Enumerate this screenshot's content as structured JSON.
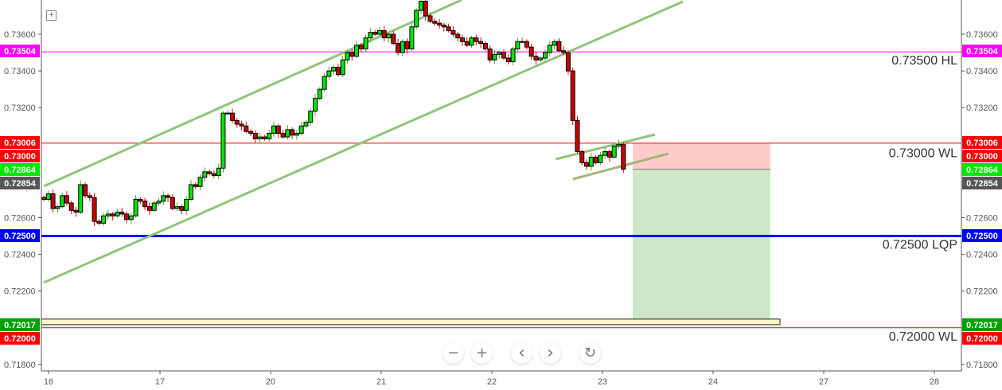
{
  "chart_data": {
    "type": "candlestick",
    "ylim": [
      0.7175,
      0.7378
    ],
    "y_ticks": [
      "0.73600",
      "0.73400",
      "0.73200",
      "0.72600",
      "0.72400",
      "0.72200",
      "0.71800"
    ],
    "x_ticks": [
      "16",
      "17",
      "20",
      "21",
      "22",
      "23",
      "24",
      "27",
      "28"
    ],
    "grid": false,
    "first_open": 0.7271,
    "closes": [
      0.727,
      0.7273,
      0.7265,
      0.7266,
      0.7272,
      0.7268,
      0.7264,
      0.7263,
      0.7278,
      0.7272,
      0.7271,
      0.7258,
      0.7257,
      0.7261,
      0.7262,
      0.7261,
      0.7263,
      0.7262,
      0.7259,
      0.7261,
      0.727,
      0.7269,
      0.7266,
      0.7264,
      0.7268,
      0.7269,
      0.7272,
      0.7271,
      0.7265,
      0.7266,
      0.7264,
      0.727,
      0.7278,
      0.7277,
      0.7282,
      0.7285,
      0.7284,
      0.7283,
      0.7287,
      0.7317,
      0.7317,
      0.7313,
      0.7311,
      0.731,
      0.7307,
      0.7306,
      0.7303,
      0.7304,
      0.7303,
      0.7306,
      0.731,
      0.7306,
      0.7304,
      0.7308,
      0.7305,
      0.7306,
      0.731,
      0.7312,
      0.7318,
      0.7325,
      0.733,
      0.7337,
      0.734,
      0.7342,
      0.7338,
      0.7346,
      0.735,
      0.7348,
      0.7354,
      0.7352,
      0.7358,
      0.7361,
      0.736,
      0.7362,
      0.7358,
      0.736,
      0.7355,
      0.735,
      0.7356,
      0.7352,
      0.7364,
      0.7373,
      0.7378,
      0.737,
      0.7367,
      0.7366,
      0.7365,
      0.7364,
      0.7362,
      0.736,
      0.7358,
      0.7356,
      0.7354,
      0.7358,
      0.7356,
      0.7355,
      0.7352,
      0.7346,
      0.7349,
      0.735,
      0.7347,
      0.7345,
      0.7352,
      0.7356,
      0.7356,
      0.7353,
      0.7348,
      0.7346,
      0.7347,
      0.735,
      0.7354,
      0.7356,
      0.7351,
      0.735,
      0.734,
      0.7313,
      0.7296,
      0.729,
      0.7288,
      0.7293,
      0.729,
      0.7294,
      0.7296,
      0.7293,
      0.7299,
      0.73,
      0.72864
    ],
    "up_color": "#00e600",
    "down_color": "#cc0000",
    "levels": [
      {
        "price": 0.73504,
        "label": "0.73504",
        "color": "#ff00ff",
        "text": "0.73500 HL"
      },
      {
        "price": 0.73006,
        "label": "0.73006",
        "color": "#ff0000",
        "text": ""
      },
      {
        "price": 0.73,
        "label": "0.73000",
        "color": "#ff0000",
        "text": "0.73000 WL"
      },
      {
        "price": 0.72864,
        "label": "0.72864",
        "color": "#00e600",
        "text": ""
      },
      {
        "price": 0.72854,
        "label": "0.72854",
        "color": "#555555",
        "text": ""
      },
      {
        "price": 0.725,
        "label": "0.72500",
        "color": "#0000ff",
        "text": "0.72500 LQP"
      },
      {
        "price": 0.72017,
        "label": "0.72017",
        "color": "#00a000",
        "text": ""
      },
      {
        "price": 0.72,
        "label": "0.72000",
        "color": "#ff0000",
        "text": "0.72000 WL"
      }
    ],
    "position": {
      "entry": 0.72864,
      "stop": 0.73006,
      "target": 0.72017,
      "stop_color": "#ffcccc",
      "target_color": "#cce8c8"
    },
    "trendline_color": "#8fc57a"
  },
  "controls": {
    "zoom_out": "−",
    "zoom_in": "+",
    "scroll_left": "‹",
    "scroll_right": "›",
    "reset": "↻"
  },
  "toolbar": {
    "expand_icon": "+"
  }
}
